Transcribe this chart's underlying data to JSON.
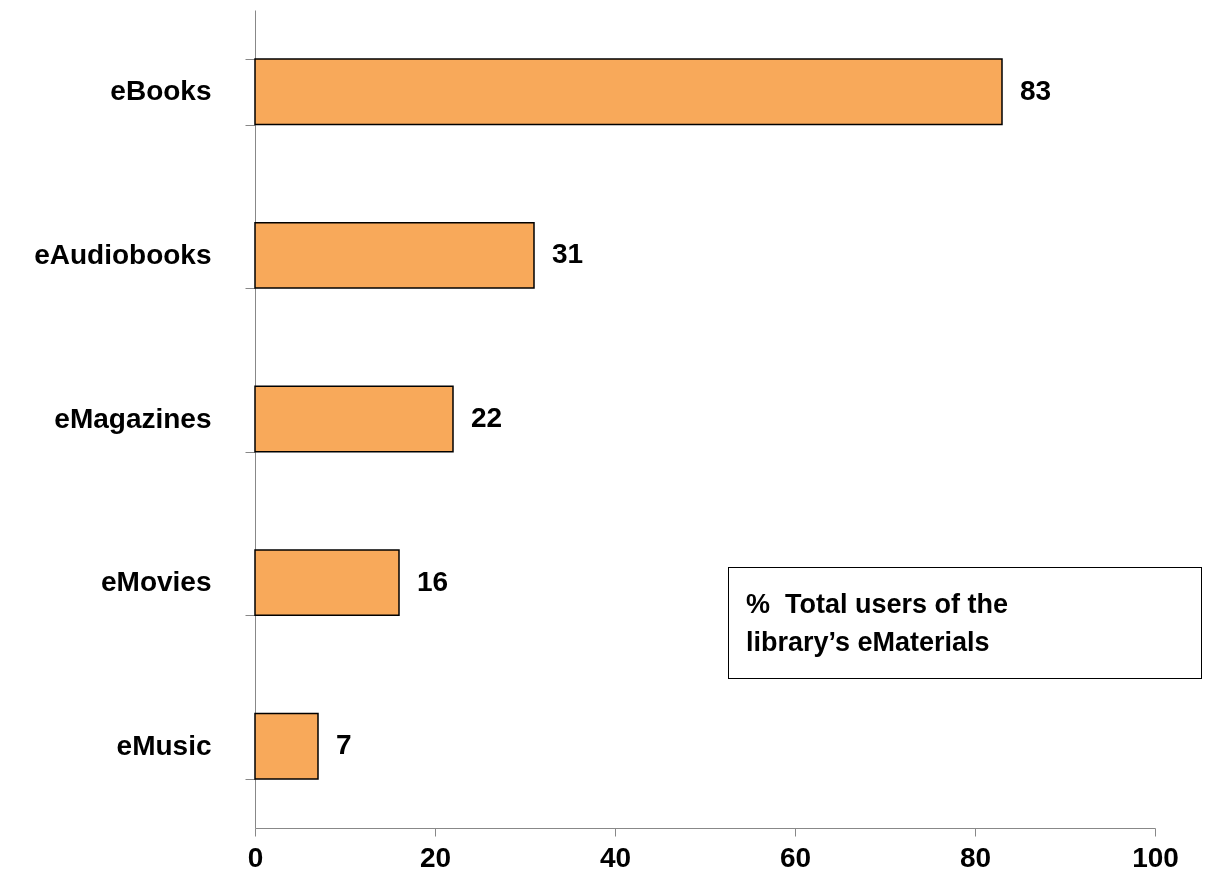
{
  "chart_data": {
    "type": "bar",
    "orientation": "horizontal",
    "categories": [
      "eBooks",
      "eAudiobooks",
      "eMagazines",
      "eMovies",
      "eMusic"
    ],
    "values": [
      83,
      31,
      22,
      16,
      7
    ],
    "color": "#f8a95a",
    "xlim": [
      0,
      100
    ],
    "xticks": [
      0,
      20,
      40,
      60,
      80,
      100
    ],
    "data_labels": true,
    "grid": false,
    "annotations": [
      "%  Total users of the library’s eMaterials"
    ]
  }
}
